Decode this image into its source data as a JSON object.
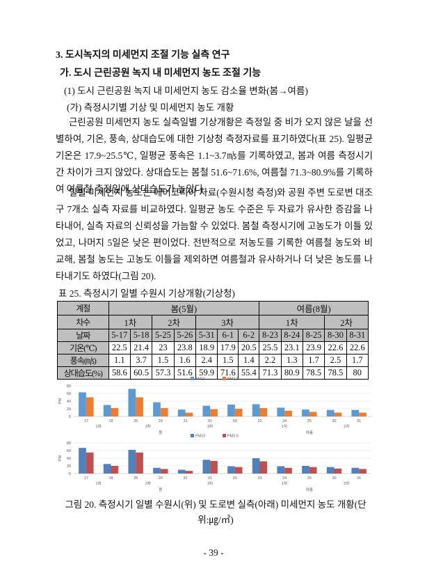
{
  "heading": "3. 도시녹지의 미세먼지 조절 기능 실측 연구",
  "subheading": "가. 도시 근린공원 녹지 내 미세먼지 농도 조절 기능",
  "section": "(1) 도시 근린공원 녹지 내 미세먼지 농도 감소율 변화(봄→여름)",
  "subsection": "(가) 측정시기별 기상 및 미세먼지 농도 개황",
  "paragraphs": [
    "근린공원 미세먼지 농도 실측일별 기상개황은 측정일 중 비가 오지 않은 날을 선별하여, 기온, 풍속, 상대습도에 대한 기상청 측정자료를 표기하였다(표 25). 일평균 기온은 17.9~25.5℃, 일평균 풍속은 1.1~3.7㎧를 기록하였고, 봄과 여름 측정시기 간 차이가 크지 않았다. 상대습도는 봄철 51.6~71.6%, 여름철 71.3~80.9%를 기록하여 여름철 측정일에 상대습도가 높았다.",
    "일별 미세먼지 농도는 에어코리아 자료(수원시청 측정)와 공원 주변 도로변 대조구 7개소 실측 자료를 비교하였다. 일평균 농도 수준은 두 자료가 유사한 증감을 나타내어, 실측 자료의 신뢰성을 가늠할 수 있었다. 봄철 측정시기에 고농도가 이틀 있었고, 나머지 5일은 낮은 편이었다. 전반적으로 저농도를 기록한 여름철 농도와 비교해, 봄철 농도는 고농도 이틀을 제외하면 여름철과 유사하거나 더 낮은 농도를 나타내기도 하였다(그림 20)."
  ],
  "table": {
    "caption": "표 25. 측정시기 일별 수원시 기상개황(기상청)",
    "rows": [
      [
        "계절",
        "봄(5월)",
        "여름(8월)"
      ],
      [
        "차수",
        "1차",
        "2차",
        "3차",
        "1차",
        "2차"
      ],
      [
        "날짜",
        "5-17",
        "5-18",
        "5-25",
        "5-26",
        "5-31",
        "6-1",
        "6-2",
        "8-23",
        "8-24",
        "8-25",
        "8-30",
        "8-31"
      ],
      [
        "기온(℃)",
        22.5,
        21.4,
        23,
        23.8,
        18.9,
        17.9,
        20.5,
        25.5,
        23.1,
        23.9,
        22.6,
        22.6
      ],
      [
        "풍속(㎧)",
        1.1,
        3.7,
        1.5,
        1.6,
        2.4,
        1.5,
        1.4,
        2.2,
        1.3,
        1.7,
        2.5,
        1.7
      ],
      [
        "상대습도(%)",
        58.6,
        60.5,
        57.3,
        51.6,
        59.9,
        71.6,
        55.4,
        71.3,
        80.9,
        78.5,
        78.5,
        80
      ]
    ]
  },
  "chart_data": [
    {
      "type": "bar",
      "ylabel": "PM",
      "categories": [
        "17",
        "18",
        "25",
        "26",
        "31",
        "01",
        "02",
        "23",
        "24",
        "25",
        "30",
        "31"
      ],
      "groups": [
        "1차",
        "2차",
        "3차",
        "1차",
        "2차"
      ],
      "seasons": [
        "봄",
        "여름"
      ],
      "series": [
        {
          "name": "PM10",
          "color": "#5b9bd5",
          "values": [
            63,
            30,
            72,
            37,
            18,
            28,
            31,
            32,
            23,
            18,
            17,
            17
          ]
        },
        {
          "name": "PM2.5",
          "color": "#ed7d31",
          "values": [
            50,
            22,
            50,
            22,
            10,
            19,
            20,
            22,
            15,
            12,
            10,
            10
          ]
        }
      ],
      "ylim": [
        0,
        80
      ],
      "yticks": [
        0,
        20,
        40,
        60,
        80
      ],
      "grid": true,
      "legend": "top"
    },
    {
      "type": "bar",
      "ylabel": "PM",
      "categories": [
        "17",
        "18",
        "25",
        "26",
        "31",
        "01",
        "02",
        "23",
        "24",
        "25",
        "30",
        "31"
      ],
      "groups": [
        "1차",
        "2차",
        "3차",
        "1차",
        "2차"
      ],
      "seasons": [
        "봄",
        "여름"
      ],
      "series": [
        {
          "name": "PM10",
          "color": "#4f81bd",
          "values": [
            67,
            25,
            62,
            15,
            10,
            36,
            19,
            40,
            19,
            20,
            17,
            15
          ]
        },
        {
          "name": "PM2.5",
          "color": "#c0504d",
          "values": [
            55,
            20,
            55,
            12,
            7,
            33,
            17,
            32,
            15,
            17,
            13,
            12
          ]
        }
      ],
      "ylim": [
        0,
        80
      ],
      "yticks": [
        0,
        20,
        40,
        60,
        80
      ],
      "grid": true,
      "legend": "top"
    }
  ],
  "figure_caption": "그림 20. 측정시기 일별 수원시(위) 및 도로변 실측(아래) 미세먼지 농도 개황(단위:㎍/㎥)",
  "page_number": "- 39 -"
}
